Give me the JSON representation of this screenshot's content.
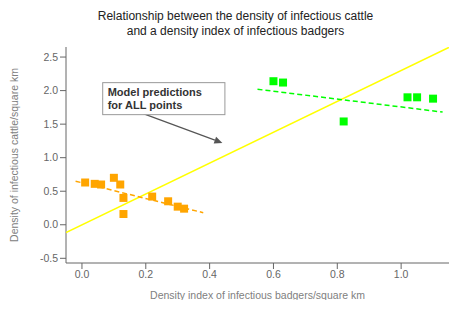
{
  "chart_data": {
    "type": "scatter",
    "title": "Relationship between the density of infectious cattle\nand a density index of infectious badgers",
    "x_label": "Density index of infectious badgers/square km",
    "y_label": "Density of infectious cattle/square km",
    "xlim": [
      -0.05,
      1.15
    ],
    "ylim": [
      -0.57,
      2.65
    ],
    "xticks": [
      {
        "value": 0.0,
        "label": "0.0"
      },
      0.2,
      0.4,
      0.6,
      0.8,
      {
        "value": 1.0,
        "label": "1.0"
      }
    ],
    "yticks": [
      -0.5,
      {
        "value": 0.0,
        "label": "0.0"
      },
      0.5,
      {
        "value": 1.0,
        "label": "1.0"
      },
      1.5,
      {
        "value": 2.0,
        "label": "2.0"
      },
      2.5
    ],
    "grid": false,
    "series": [
      {
        "type": "line",
        "color": "#FFFF00",
        "line_style": "solid",
        "x": [
          -0.05,
          1.15
        ],
        "values": [
          -0.115,
          2.645
        ]
      },
      {
        "type": "line",
        "color": "#FFA500",
        "line_style": "dashed",
        "x": [
          -0.02,
          0.38
        ],
        "values": [
          0.65,
          0.18
        ]
      },
      {
        "type": "line",
        "color": "#00FF00",
        "line_style": "dashed",
        "x": [
          0.55,
          1.13
        ],
        "values": [
          2.02,
          1.68
        ]
      },
      {
        "type": "scatter",
        "color": "#FFA500",
        "marker": "square",
        "x": [
          0.01,
          0.04,
          0.06,
          0.1,
          0.12,
          0.13,
          0.13,
          0.22,
          0.27,
          0.3,
          0.32
        ],
        "values": [
          0.63,
          0.61,
          0.6,
          0.7,
          0.6,
          0.4,
          0.16,
          0.42,
          0.35,
          0.27,
          0.24
        ]
      },
      {
        "type": "scatter",
        "color": "#00FF00",
        "marker": "square",
        "x": [
          0.6,
          0.63,
          0.82,
          1.02,
          1.05,
          1.1
        ],
        "values": [
          2.14,
          2.12,
          1.54,
          1.9,
          1.9,
          1.88
        ]
      }
    ],
    "annotations": [
      {
        "text": "Model predictions\nfor ALL points",
        "x": 0.44,
        "y": 1.22,
        "text_x": 0.065,
        "text_y": 1.88
      }
    ]
  }
}
